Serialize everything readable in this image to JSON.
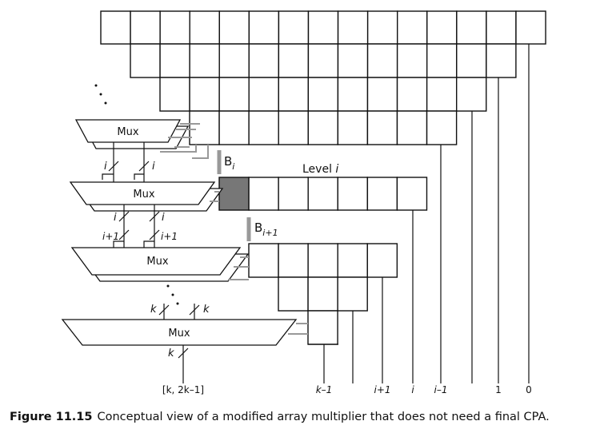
{
  "muxes": [
    "Mux",
    "Mux",
    "Mux",
    "Mux"
  ],
  "wire_labels": [
    "i",
    "i",
    "i",
    "i",
    "i+1",
    "i+1",
    "k",
    "k",
    "k"
  ],
  "b_i": {
    "text": "B",
    "sub": "i"
  },
  "b_i1": {
    "text": "B",
    "sub": "i+1"
  },
  "level": {
    "text": "Level ",
    "var": "i"
  },
  "outputs": [
    "[k, 2k–1]",
    "k–1",
    "i+1",
    "i",
    "i–1",
    "1",
    "0"
  ],
  "caption": {
    "label": "Figure 11.15",
    "text": "Conceptual view of a modified array multiplier that does not need a final CPA."
  }
}
